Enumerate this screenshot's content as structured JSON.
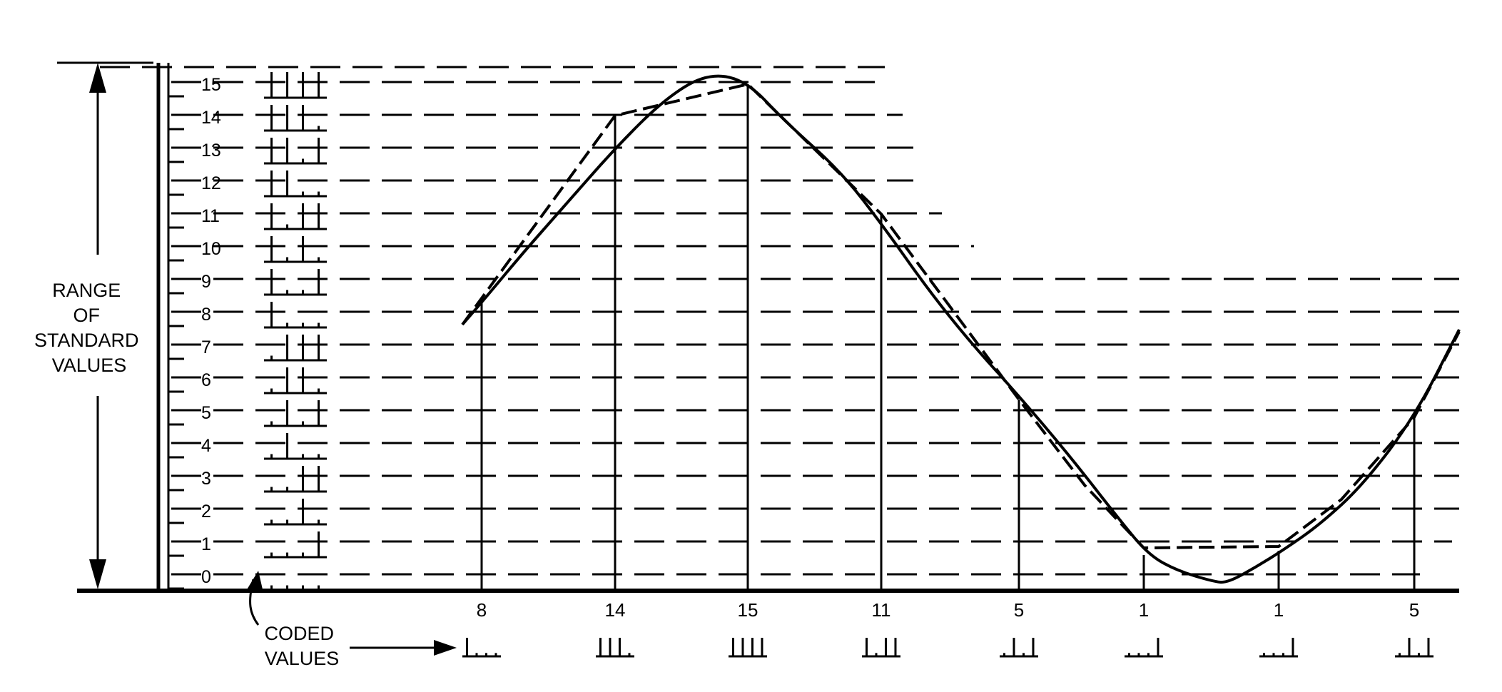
{
  "range_label": [
    "RANGE",
    "OF",
    "STANDARD",
    "VALUES"
  ],
  "coded_label": [
    "CODED",
    "VALUES"
  ],
  "scale_levels": [
    "0",
    "1",
    "2",
    "3",
    "4",
    "5",
    "6",
    "7",
    "8",
    "9",
    "10",
    "11",
    "12",
    "13",
    "14",
    "15"
  ],
  "sample_values": [
    "8",
    "14",
    "15",
    "11",
    "5",
    "1",
    "1",
    "5"
  ],
  "colors": {
    "ink": "#000000",
    "background": "#ffffff"
  }
}
